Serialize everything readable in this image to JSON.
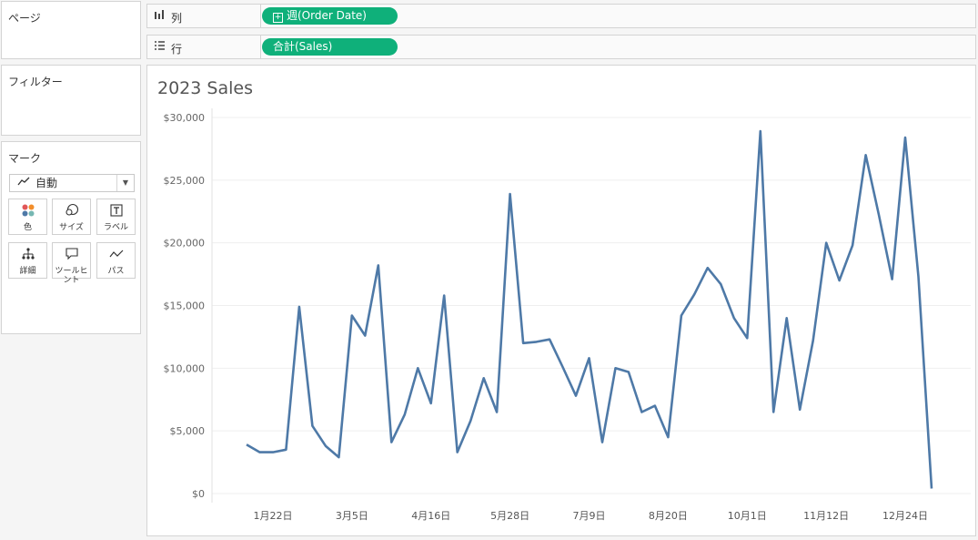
{
  "panels": {
    "pages_title": "ページ",
    "filters_title": "フィルター",
    "marks_title": "マーク"
  },
  "shelves": {
    "columns": {
      "label": "列",
      "icon": "columns-icon",
      "pill": "週(Order Date)"
    },
    "rows": {
      "label": "行",
      "icon": "rows-icon",
      "pill": "合計(Sales)"
    }
  },
  "marks": {
    "type_label": "自動",
    "buttons": [
      {
        "label": "色",
        "icon": "color-icon"
      },
      {
        "label": "サイズ",
        "icon": "size-icon"
      },
      {
        "label": "ラベル",
        "icon": "label-icon"
      },
      {
        "label": "詳細",
        "icon": "detail-icon"
      },
      {
        "label": "ツールヒント",
        "icon": "tooltip-icon"
      },
      {
        "label": "パス",
        "icon": "path-icon"
      }
    ]
  },
  "colors": {
    "pill": "#0fb07a",
    "line": "#4e79a7"
  },
  "chart_data": {
    "type": "line",
    "title": "2023 Sales",
    "xlabel": "",
    "ylabel": "",
    "ylim": [
      0,
      30000
    ],
    "y_ticks": [
      "$0",
      "$5,000",
      "$10,000",
      "$15,000",
      "$20,000",
      "$25,000",
      "$30,000"
    ],
    "x_ticks": [
      "1月22日",
      "3月5日",
      "4月16日",
      "5月28日",
      "7月9日",
      "8月20日",
      "10月1日",
      "11月12日",
      "12月24日"
    ],
    "x_tick_weeks": [
      3,
      9,
      15,
      21,
      27,
      33,
      39,
      45,
      51
    ],
    "grid": true,
    "legend": "none",
    "series": [
      {
        "values": [
          3900,
          3300,
          3300,
          3500,
          14900,
          5400,
          3800,
          2900,
          14200,
          12600,
          18200,
          4100,
          6300,
          10000,
          7200,
          15800,
          3300,
          5800,
          9200,
          6500,
          23900,
          12000,
          12100,
          12300,
          10100,
          7800,
          10800,
          4100,
          10000,
          9700,
          6500,
          7000,
          4500,
          14200,
          15900,
          18000,
          16700,
          14000,
          12400,
          28900,
          6500,
          14000,
          6700,
          12200,
          20000,
          17000,
          19800,
          27000,
          22200,
          17100,
          28400,
          17300,
          400
        ]
      }
    ]
  }
}
